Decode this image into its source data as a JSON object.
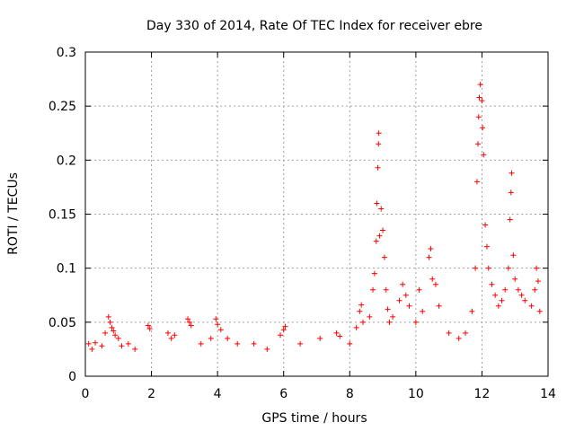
{
  "chart_data": {
    "type": "scatter",
    "title": "Day 330 of 2014, Rate Of TEC Index for receiver ebre",
    "xlabel": "GPS time / hours",
    "ylabel": "ROTI / TECUs",
    "xlim": [
      0,
      14
    ],
    "ylim": [
      0,
      0.3
    ],
    "xticks": [
      "0",
      "2",
      "4",
      "6",
      "8",
      "10",
      "12",
      "14"
    ],
    "yticks": [
      "0",
      "0.05",
      "0.1",
      "0.15",
      "0.2",
      "0.25",
      "0.3"
    ],
    "grid": true,
    "marker": "+",
    "color": "#ff0000",
    "series": [
      {
        "name": "ROTI",
        "points": [
          [
            0.1,
            0.03
          ],
          [
            0.2,
            0.025
          ],
          [
            0.3,
            0.031
          ],
          [
            0.5,
            0.028
          ],
          [
            0.6,
            0.04
          ],
          [
            0.7,
            0.055
          ],
          [
            0.75,
            0.05
          ],
          [
            0.8,
            0.045
          ],
          [
            0.85,
            0.042
          ],
          [
            0.9,
            0.038
          ],
          [
            1.0,
            0.035
          ],
          [
            1.1,
            0.028
          ],
          [
            1.3,
            0.03
          ],
          [
            1.5,
            0.025
          ],
          [
            1.9,
            0.047
          ],
          [
            1.95,
            0.044
          ],
          [
            2.5,
            0.04
          ],
          [
            2.6,
            0.035
          ],
          [
            2.7,
            0.038
          ],
          [
            3.1,
            0.053
          ],
          [
            3.15,
            0.05
          ],
          [
            3.2,
            0.047
          ],
          [
            3.5,
            0.03
          ],
          [
            3.8,
            0.035
          ],
          [
            3.95,
            0.053
          ],
          [
            4.0,
            0.048
          ],
          [
            4.1,
            0.043
          ],
          [
            4.3,
            0.035
          ],
          [
            4.6,
            0.03
          ],
          [
            5.1,
            0.03
          ],
          [
            5.5,
            0.025
          ],
          [
            5.9,
            0.038
          ],
          [
            6.0,
            0.043
          ],
          [
            6.05,
            0.046
          ],
          [
            6.5,
            0.03
          ],
          [
            7.1,
            0.035
          ],
          [
            7.6,
            0.04
          ],
          [
            7.7,
            0.037
          ],
          [
            8.0,
            0.03
          ],
          [
            8.2,
            0.045
          ],
          [
            8.3,
            0.06
          ],
          [
            8.35,
            0.066
          ],
          [
            8.4,
            0.05
          ],
          [
            8.6,
            0.055
          ],
          [
            8.7,
            0.08
          ],
          [
            8.75,
            0.095
          ],
          [
            8.8,
            0.125
          ],
          [
            8.82,
            0.16
          ],
          [
            8.85,
            0.193
          ],
          [
            8.87,
            0.215
          ],
          [
            8.88,
            0.225
          ],
          [
            8.9,
            0.13
          ],
          [
            8.95,
            0.155
          ],
          [
            9.0,
            0.135
          ],
          [
            9.05,
            0.11
          ],
          [
            9.1,
            0.08
          ],
          [
            9.15,
            0.062
          ],
          [
            9.2,
            0.05
          ],
          [
            9.3,
            0.055
          ],
          [
            9.5,
            0.07
          ],
          [
            9.6,
            0.085
          ],
          [
            9.7,
            0.075
          ],
          [
            9.8,
            0.065
          ],
          [
            10.0,
            0.05
          ],
          [
            10.1,
            0.08
          ],
          [
            10.2,
            0.06
          ],
          [
            10.4,
            0.11
          ],
          [
            10.45,
            0.118
          ],
          [
            10.5,
            0.09
          ],
          [
            10.6,
            0.085
          ],
          [
            10.7,
            0.065
          ],
          [
            11.0,
            0.04
          ],
          [
            11.3,
            0.035
          ],
          [
            11.5,
            0.04
          ],
          [
            11.7,
            0.06
          ],
          [
            11.8,
            0.1
          ],
          [
            11.85,
            0.18
          ],
          [
            11.88,
            0.215
          ],
          [
            11.9,
            0.24
          ],
          [
            11.92,
            0.258
          ],
          [
            11.95,
            0.27
          ],
          [
            12.0,
            0.255
          ],
          [
            12.02,
            0.23
          ],
          [
            12.05,
            0.205
          ],
          [
            12.1,
            0.14
          ],
          [
            12.15,
            0.12
          ],
          [
            12.2,
            0.1
          ],
          [
            12.3,
            0.085
          ],
          [
            12.4,
            0.075
          ],
          [
            12.5,
            0.065
          ],
          [
            12.6,
            0.07
          ],
          [
            12.7,
            0.08
          ],
          [
            12.8,
            0.1
          ],
          [
            12.85,
            0.145
          ],
          [
            12.88,
            0.17
          ],
          [
            12.9,
            0.188
          ],
          [
            12.95,
            0.112
          ],
          [
            13.0,
            0.09
          ],
          [
            13.1,
            0.08
          ],
          [
            13.2,
            0.075
          ],
          [
            13.3,
            0.07
          ],
          [
            13.5,
            0.065
          ],
          [
            13.6,
            0.08
          ],
          [
            13.65,
            0.1
          ],
          [
            13.7,
            0.088
          ],
          [
            13.75,
            0.06
          ]
        ]
      }
    ]
  }
}
